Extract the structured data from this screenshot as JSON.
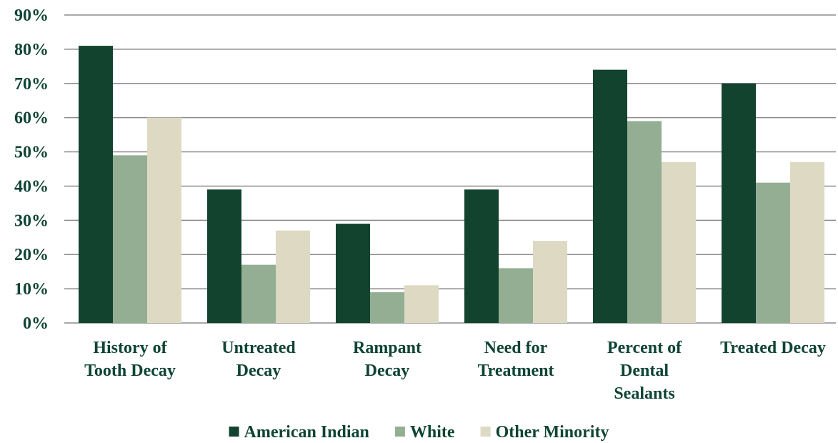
{
  "chart_data": {
    "type": "bar",
    "categories": [
      [
        "History of",
        "Tooth Decay"
      ],
      [
        "Untreated",
        "Decay"
      ],
      [
        "Rampant",
        "Decay"
      ],
      [
        "Need for",
        "Treatment"
      ],
      [
        "Percent of",
        "Dental",
        "Sealants"
      ],
      [
        "Treated Decay"
      ]
    ],
    "series": [
      {
        "name": "American Indian",
        "color": "#12432f",
        "values": [
          81,
          39,
          29,
          39,
          74,
          70
        ]
      },
      {
        "name": "White",
        "color": "#94ae93",
        "values": [
          49,
          17,
          9,
          16,
          59,
          41
        ]
      },
      {
        "name": "Other Minority",
        "color": "#ddd9c3",
        "values": [
          60,
          27,
          11,
          24,
          47,
          47
        ]
      }
    ],
    "ylim": [
      0,
      90
    ],
    "yticks": [
      0,
      10,
      20,
      30,
      40,
      50,
      60,
      70,
      80,
      90
    ],
    "ytick_labels": [
      "0%",
      "10%",
      "20%",
      "30%",
      "40%",
      "50%",
      "60%",
      "70%",
      "80%",
      "90%"
    ],
    "grid": true,
    "legend_position": "bottom"
  }
}
